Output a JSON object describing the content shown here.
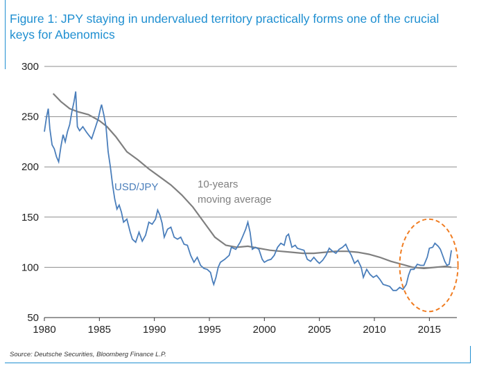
{
  "chart_data": {
    "type": "line",
    "title": "Figure 1: JPY staying in undervalued territory practically forms one of the crucial keys for Abenomics",
    "source": "Source: Deutsche Securities, Bloomberg Finance L.P.",
    "xlim": [
      1980,
      2017.5
    ],
    "ylim": [
      50,
      300
    ],
    "x_ticks": [
      "1980",
      "1985",
      "1990",
      "1995",
      "2000",
      "2005",
      "2010",
      "2015"
    ],
    "y_ticks": [
      "300",
      "250",
      "200",
      "150",
      "100",
      "50"
    ],
    "grid": "horizontal",
    "series": [
      {
        "name": "USD/JPY",
        "color": "#4a7ebb",
        "points": [
          [
            1980.0,
            235
          ],
          [
            1980.2,
            250
          ],
          [
            1980.35,
            258
          ],
          [
            1980.5,
            238
          ],
          [
            1980.7,
            222
          ],
          [
            1980.9,
            218
          ],
          [
            1981.1,
            210
          ],
          [
            1981.3,
            205
          ],
          [
            1981.5,
            220
          ],
          [
            1981.7,
            232
          ],
          [
            1981.9,
            225
          ],
          [
            1982.1,
            235
          ],
          [
            1982.3,
            242
          ],
          [
            1982.5,
            255
          ],
          [
            1982.7,
            265
          ],
          [
            1982.85,
            275
          ],
          [
            1983.0,
            240
          ],
          [
            1983.2,
            236
          ],
          [
            1983.5,
            240
          ],
          [
            1983.8,
            235
          ],
          [
            1984.0,
            232
          ],
          [
            1984.3,
            228
          ],
          [
            1984.6,
            238
          ],
          [
            1984.9,
            248
          ],
          [
            1985.1,
            258
          ],
          [
            1985.2,
            262
          ],
          [
            1985.4,
            252
          ],
          [
            1985.6,
            240
          ],
          [
            1985.8,
            215
          ],
          [
            1986.0,
            200
          ],
          [
            1986.2,
            182
          ],
          [
            1986.4,
            168
          ],
          [
            1986.6,
            158
          ],
          [
            1986.8,
            162
          ],
          [
            1987.0,
            155
          ],
          [
            1987.2,
            145
          ],
          [
            1987.5,
            148
          ],
          [
            1987.8,
            135
          ],
          [
            1988.0,
            128
          ],
          [
            1988.3,
            125
          ],
          [
            1988.6,
            135
          ],
          [
            1988.9,
            126
          ],
          [
            1989.2,
            132
          ],
          [
            1989.5,
            145
          ],
          [
            1989.8,
            143
          ],
          [
            1990.1,
            148
          ],
          [
            1990.3,
            157
          ],
          [
            1990.5,
            152
          ],
          [
            1990.7,
            144
          ],
          [
            1990.9,
            130
          ],
          [
            1991.2,
            138
          ],
          [
            1991.5,
            140
          ],
          [
            1991.8,
            130
          ],
          [
            1992.1,
            128
          ],
          [
            1992.4,
            130
          ],
          [
            1992.7,
            123
          ],
          [
            1993.0,
            122
          ],
          [
            1993.3,
            112
          ],
          [
            1993.6,
            105
          ],
          [
            1993.9,
            110
          ],
          [
            1994.2,
            102
          ],
          [
            1994.5,
            99
          ],
          [
            1994.8,
            98
          ],
          [
            1995.1,
            95
          ],
          [
            1995.3,
            86
          ],
          [
            1995.4,
            83
          ],
          [
            1995.6,
            90
          ],
          [
            1995.8,
            100
          ],
          [
            1996.0,
            105
          ],
          [
            1996.4,
            108
          ],
          [
            1996.8,
            112
          ],
          [
            1997.0,
            120
          ],
          [
            1997.4,
            118
          ],
          [
            1997.8,
            125
          ],
          [
            1998.0,
            130
          ],
          [
            1998.3,
            138
          ],
          [
            1998.5,
            145
          ],
          [
            1998.7,
            135
          ],
          [
            1998.9,
            118
          ],
          [
            1999.2,
            120
          ],
          [
            1999.5,
            118
          ],
          [
            1999.8,
            108
          ],
          [
            2000.0,
            105
          ],
          [
            2000.3,
            107
          ],
          [
            2000.6,
            108
          ],
          [
            2000.9,
            112
          ],
          [
            2001.2,
            120
          ],
          [
            2001.5,
            124
          ],
          [
            2001.8,
            122
          ],
          [
            2002.0,
            131
          ],
          [
            2002.2,
            133
          ],
          [
            2002.5,
            120
          ],
          [
            2002.8,
            122
          ],
          [
            2003.0,
            119
          ],
          [
            2003.3,
            118
          ],
          [
            2003.6,
            117
          ],
          [
            2003.9,
            108
          ],
          [
            2004.2,
            106
          ],
          [
            2004.5,
            110
          ],
          [
            2004.8,
            106
          ],
          [
            2005.0,
            104
          ],
          [
            2005.3,
            107
          ],
          [
            2005.6,
            112
          ],
          [
            2005.9,
            119
          ],
          [
            2006.2,
            116
          ],
          [
            2006.5,
            114
          ],
          [
            2006.8,
            118
          ],
          [
            2007.1,
            120
          ],
          [
            2007.4,
            123
          ],
          [
            2007.6,
            118
          ],
          [
            2007.9,
            112
          ],
          [
            2008.2,
            104
          ],
          [
            2008.5,
            107
          ],
          [
            2008.8,
            100
          ],
          [
            2009.0,
            90
          ],
          [
            2009.3,
            98
          ],
          [
            2009.6,
            93
          ],
          [
            2009.9,
            90
          ],
          [
            2010.2,
            92
          ],
          [
            2010.5,
            88
          ],
          [
            2010.8,
            83
          ],
          [
            2011.1,
            82
          ],
          [
            2011.4,
            81
          ],
          [
            2011.7,
            77
          ],
          [
            2012.0,
            77
          ],
          [
            2012.3,
            80
          ],
          [
            2012.6,
            78
          ],
          [
            2012.9,
            83
          ],
          [
            2013.1,
            92
          ],
          [
            2013.3,
            98
          ],
          [
            2013.6,
            98
          ],
          [
            2013.9,
            103
          ],
          [
            2014.2,
            102
          ],
          [
            2014.5,
            102
          ],
          [
            2014.8,
            110
          ],
          [
            2015.0,
            119
          ],
          [
            2015.3,
            120
          ],
          [
            2015.5,
            124
          ],
          [
            2015.8,
            121
          ],
          [
            2016.0,
            118
          ],
          [
            2016.2,
            112
          ],
          [
            2016.4,
            106
          ],
          [
            2016.6,
            102
          ],
          [
            2016.8,
            103
          ],
          [
            2016.9,
            110
          ],
          [
            2017.0,
            117
          ]
        ]
      },
      {
        "name": "10-years moving average",
        "color": "#7f7f7f",
        "points": [
          [
            1980.8,
            273
          ],
          [
            1981.5,
            265
          ],
          [
            1982.3,
            258
          ],
          [
            1983.0,
            255
          ],
          [
            1984.0,
            252
          ],
          [
            1985.0,
            246
          ],
          [
            1985.7,
            240
          ],
          [
            1986.5,
            230
          ],
          [
            1987.5,
            215
          ],
          [
            1988.5,
            207
          ],
          [
            1989.5,
            198
          ],
          [
            1990.5,
            190
          ],
          [
            1991.5,
            182
          ],
          [
            1992.5,
            172
          ],
          [
            1993.5,
            160
          ],
          [
            1994.5,
            145
          ],
          [
            1995.5,
            130
          ],
          [
            1996.5,
            122
          ],
          [
            1997.5,
            120
          ],
          [
            1998.5,
            121
          ],
          [
            1999.5,
            119
          ],
          [
            2000.5,
            117
          ],
          [
            2001.5,
            116
          ],
          [
            2002.5,
            115
          ],
          [
            2003.5,
            114
          ],
          [
            2004.5,
            114
          ],
          [
            2005.5,
            115
          ],
          [
            2006.5,
            116
          ],
          [
            2007.5,
            116
          ],
          [
            2008.5,
            115
          ],
          [
            2009.5,
            113
          ],
          [
            2010.5,
            110
          ],
          [
            2011.5,
            106
          ],
          [
            2012.5,
            103
          ],
          [
            2013.5,
            100
          ],
          [
            2014.5,
            99
          ],
          [
            2015.5,
            100
          ],
          [
            2016.5,
            101
          ],
          [
            2017.0,
            100
          ]
        ]
      }
    ],
    "annotations": [
      {
        "text": "USD/JPY",
        "color": "#4a7ebb"
      },
      {
        "text": "10-years",
        "color": "#7f7f7f"
      },
      {
        "text": "moving average",
        "color": "#7f7f7f"
      }
    ],
    "highlight": {
      "shape": "dashed-ellipse",
      "color": "#f07c21",
      "x_range": [
        2012.3,
        2017.6
      ],
      "y_range": [
        56,
        148
      ]
    }
  }
}
